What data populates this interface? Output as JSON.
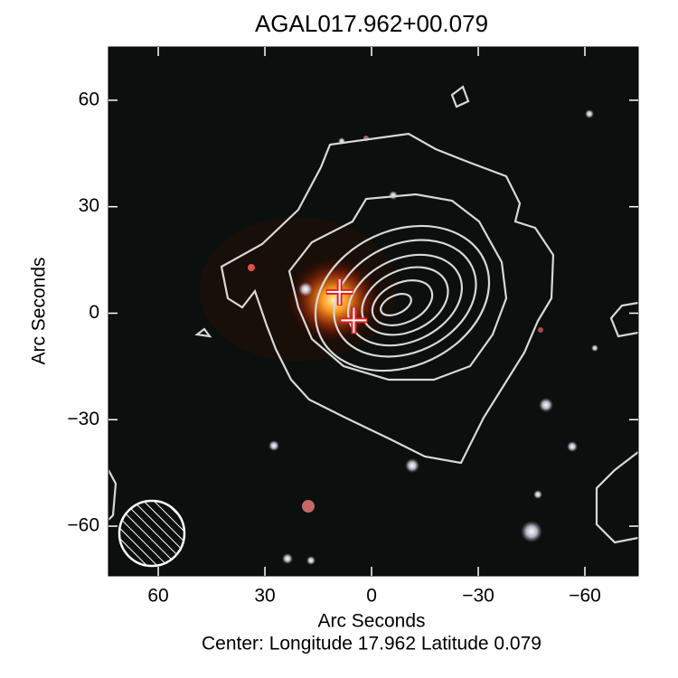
{
  "chart_data": {
    "type": "image",
    "title": "AGAL017.962+00.079",
    "x_label": "Arc Seconds",
    "y_label": "Arc Seconds",
    "footer": "Center:  Longitude 17.962 Latitude 0.079",
    "xlim": [
      74,
      -75
    ],
    "ylim": [
      -74,
      75
    ],
    "xticks": [
      60,
      30,
      0,
      {
        "value": -30,
        "label": "−30"
      },
      {
        "value": -60,
        "label": "−60"
      }
    ],
    "yticks": [
      {
        "value": -60,
        "label": "−60"
      },
      {
        "value": -30,
        "label": "−30"
      },
      0,
      30,
      60
    ],
    "markers": {
      "x": [
        9,
        5
      ],
      "y": [
        6,
        -2
      ],
      "color": "#e02020"
    }
  }
}
